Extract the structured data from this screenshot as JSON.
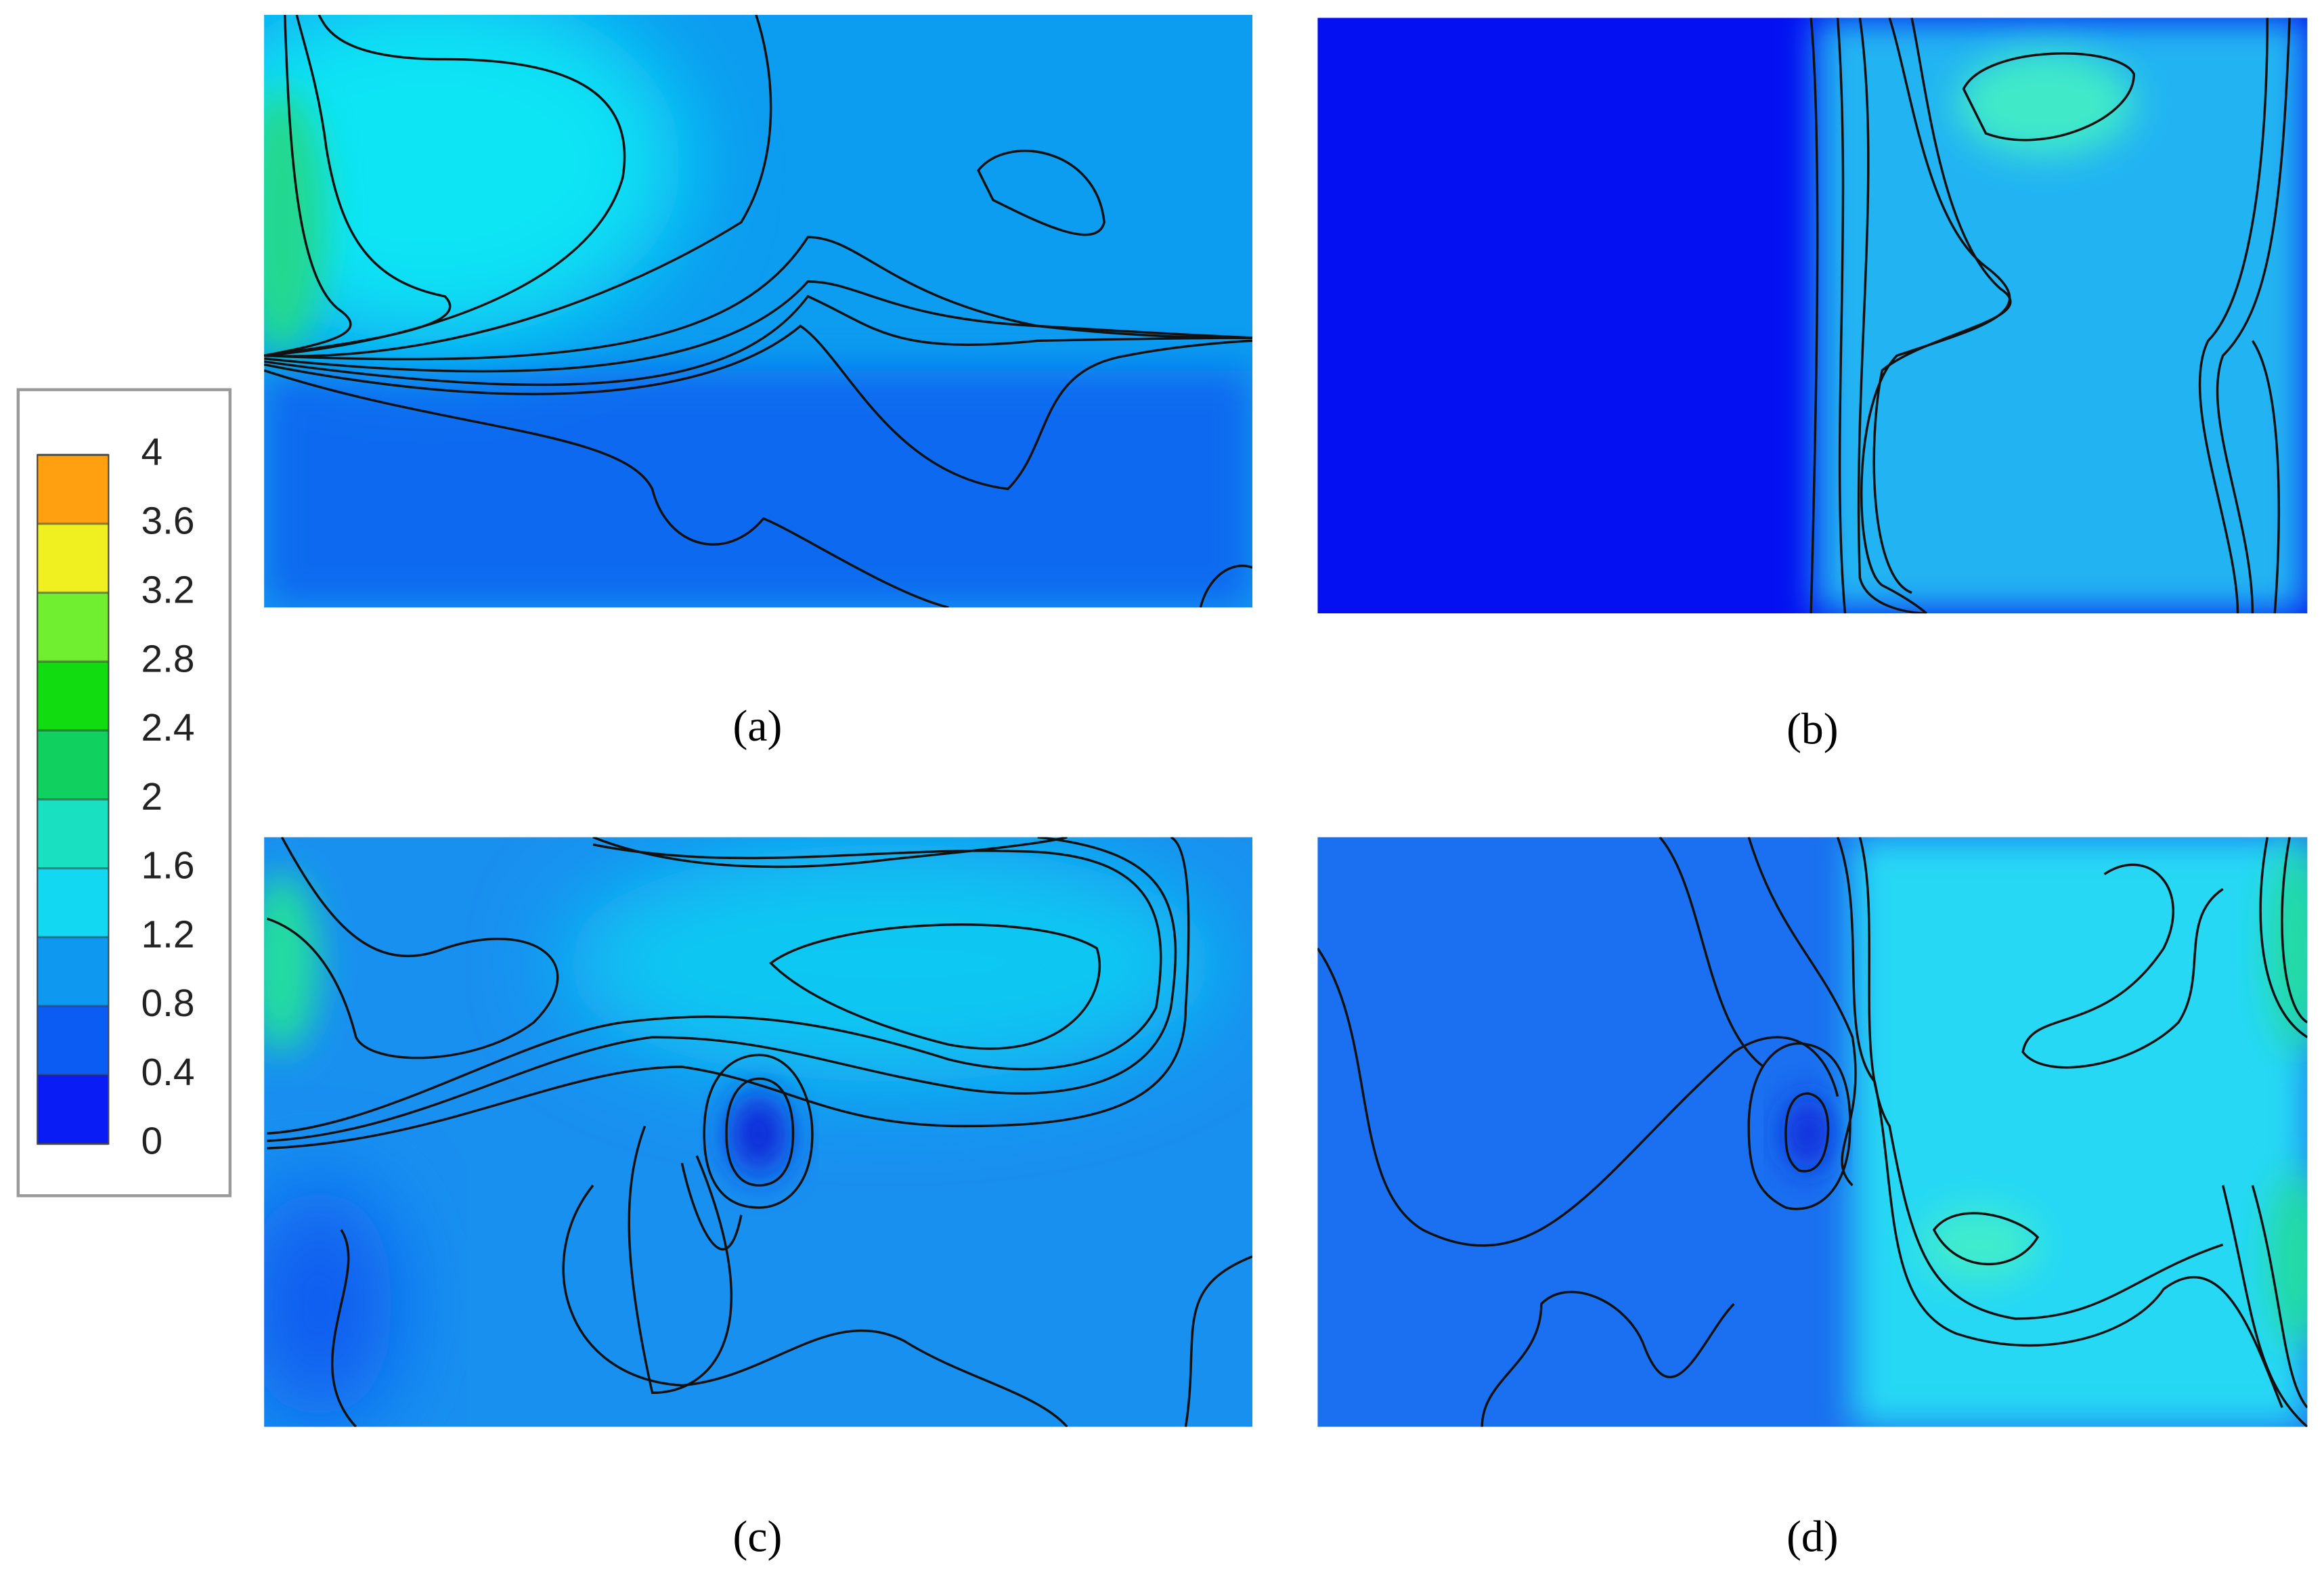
{
  "chart_data": {
    "type": "contour",
    "panel_labels": [
      "(a)",
      "(b)",
      "(c)",
      "(d)"
    ],
    "colorbar": {
      "ticks": [
        0,
        0.4,
        0.8,
        1.2,
        1.6,
        2,
        2.4,
        2.8,
        3.2,
        3.6,
        4
      ],
      "colormap": [
        "#0a1cf5",
        "#0a5cf2",
        "#0e98f0",
        "#12d8f2",
        "#18e0c0",
        "#10d060",
        "#10dc10",
        "#70ee30",
        "#f0f020",
        "#ffa010"
      ]
    }
  }
}
